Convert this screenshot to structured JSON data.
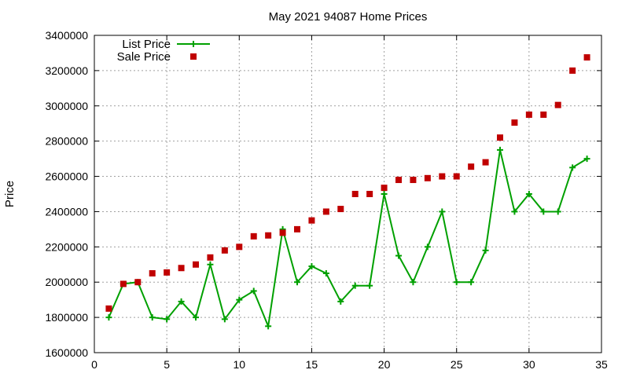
{
  "chart_data": {
    "type": "scatter",
    "title": "May 2021 94087 Home Prices",
    "xlabel": "",
    "ylabel": "Price",
    "xlim": [
      0,
      35
    ],
    "ylim": [
      1600000,
      3400000
    ],
    "xticks": [
      0,
      5,
      10,
      15,
      20,
      25,
      30,
      35
    ],
    "yticks": [
      1600000,
      1800000,
      2000000,
      2200000,
      2400000,
      2600000,
      2800000,
      3000000,
      3200000,
      3400000
    ],
    "grid": true,
    "legend_position": "top-left",
    "x": [
      1,
      2,
      3,
      4,
      5,
      6,
      7,
      8,
      9,
      10,
      11,
      12,
      13,
      14,
      15,
      16,
      17,
      18,
      19,
      20,
      21,
      22,
      23,
      24,
      25,
      26,
      27,
      28,
      29,
      30,
      31,
      32,
      33,
      34
    ],
    "series": [
      {
        "name": "List Price",
        "style": "lines+points",
        "marker": "plus",
        "color": "#00a000",
        "values": [
          1800000,
          1990000,
          2000000,
          1800000,
          1790000,
          1890000,
          1800000,
          2100000,
          1790000,
          1900000,
          1950000,
          1750000,
          2300000,
          2000000,
          2090000,
          2050000,
          1890000,
          1980000,
          1980000,
          2500000,
          2150000,
          2000000,
          2200000,
          2400000,
          2000000,
          2000000,
          2180000,
          2750000,
          2400000,
          2500000,
          2400000,
          2400000,
          2650000,
          2700000
        ]
      },
      {
        "name": "Sale Price",
        "style": "points",
        "marker": "square",
        "color": "#c00000",
        "values": [
          1850000,
          1990000,
          2000000,
          2050000,
          2055000,
          2080000,
          2100000,
          2140000,
          2180000,
          2200000,
          2260000,
          2265000,
          2280000,
          2300000,
          2350000,
          2400000,
          2415000,
          2500000,
          2500000,
          2535000,
          2580000,
          2580000,
          2590000,
          2600000,
          2600000,
          2655000,
          2680000,
          2820000,
          2905000,
          2950000,
          2950000,
          3005000,
          3200000,
          3275000
        ]
      }
    ]
  }
}
